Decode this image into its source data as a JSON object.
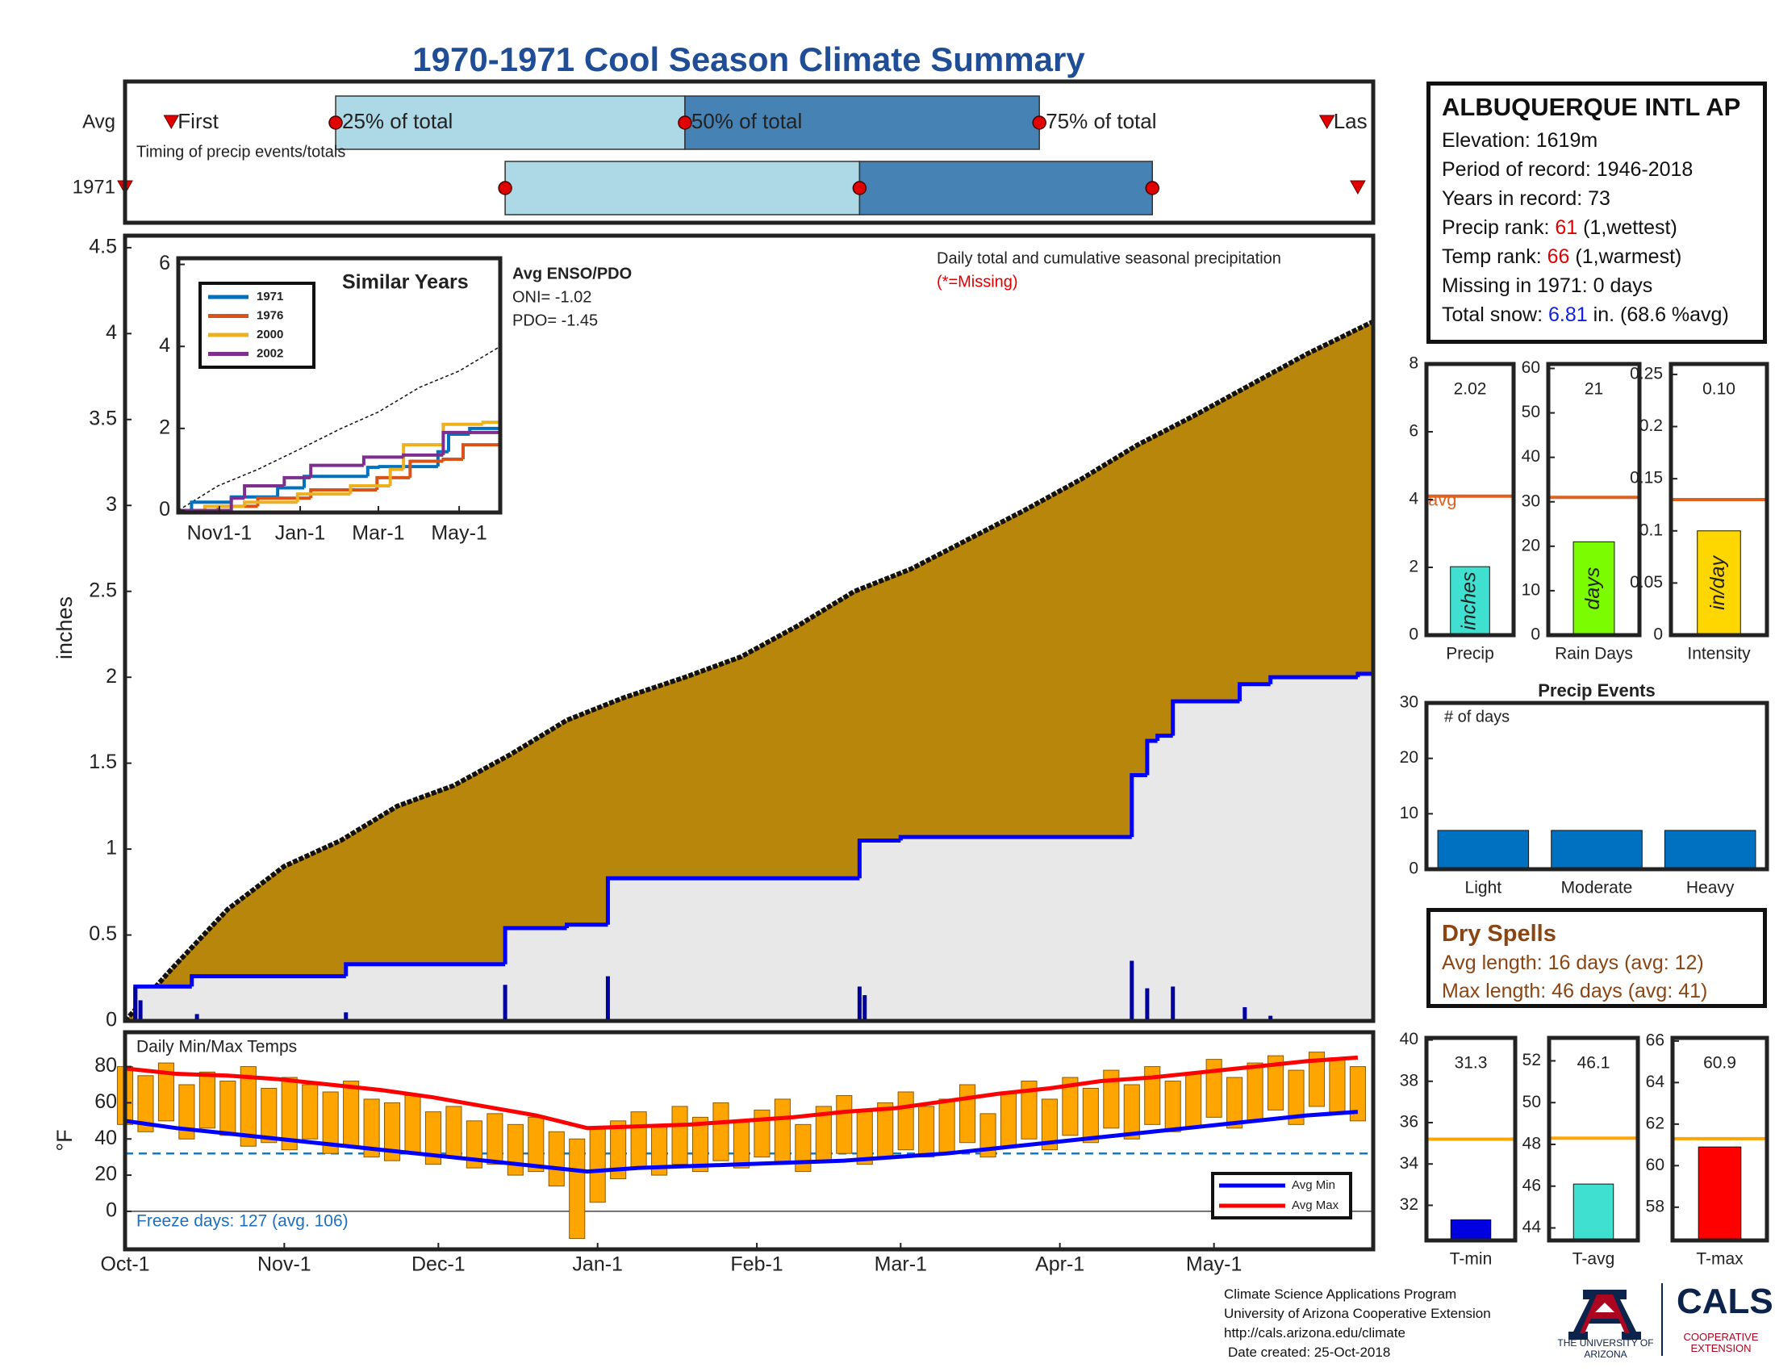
{
  "title": "1970-1971 Cool Season Climate Summary",
  "chart_data": [
    {
      "type": "timing",
      "note": "Timing of precip events/totals",
      "xlim": [
        0,
        243
      ],
      "rows": [
        {
          "name": "Avg",
          "first": 9,
          "q25": 41,
          "q50": 109,
          "q75": 178,
          "last": 234
        },
        {
          "name": "1971",
          "first": 0,
          "q25": 74,
          "q50": 143,
          "q75": 200,
          "last": 240
        }
      ],
      "labels": {
        "first": "First",
        "q25": "25% of total",
        "q50": "50% of total",
        "q75": "75% of total",
        "last": "Las"
      },
      "colors": {
        "lower": "#add8e6",
        "upper": "#4682b4",
        "marker": "#e00000"
      }
    },
    {
      "type": "precip",
      "title": "Daily total and cumulative seasonal precipitation",
      "missing_note": "(*=Missing)",
      "ylabel": "inches",
      "xlim": [
        0,
        243
      ],
      "ylim": [
        0,
        4.57
      ],
      "yticks": [
        0,
        0.5,
        1,
        1.5,
        2,
        2.5,
        3,
        3.5,
        4,
        4.5
      ],
      "background": "#e8e8e8",
      "average": {
        "color": "#b8860b",
        "x": [
          0,
          9,
          20,
          31,
          42,
          53,
          64,
          75,
          86,
          97,
          109,
          120,
          131,
          142,
          153,
          164,
          175,
          186,
          197,
          208,
          219,
          230,
          243
        ],
        "values": [
          0,
          0.3,
          0.65,
          0.9,
          1.05,
          1.25,
          1.37,
          1.55,
          1.75,
          1.88,
          2.0,
          2.12,
          2.3,
          2.5,
          2.63,
          2.8,
          2.97,
          3.15,
          3.35,
          3.52,
          3.7,
          3.88,
          4.07
        ]
      },
      "cumulative": {
        "color": "#0000ff",
        "x": [
          0,
          2,
          13,
          43,
          74,
          86,
          94,
          143,
          151,
          196,
          199,
          201,
          204,
          217,
          223,
          240,
          243
        ],
        "values": [
          0,
          0.2,
          0.26,
          0.33,
          0.54,
          0.56,
          0.83,
          1.05,
          1.07,
          1.43,
          1.63,
          1.66,
          1.86,
          1.96,
          2.0,
          2.02,
          2.02
        ]
      },
      "daily": {
        "color": "#0000a0",
        "x": [
          2,
          3,
          14,
          43,
          74,
          94,
          143,
          144,
          196,
          199,
          204,
          218,
          223
        ],
        "values": [
          0.2,
          0.12,
          0.04,
          0.05,
          0.21,
          0.26,
          0.2,
          0.15,
          0.35,
          0.19,
          0.2,
          0.08,
          0.03
        ]
      }
    },
    {
      "type": "line",
      "title": "Similar Years",
      "annotation": {
        "title": "Avg ENSO/PDO",
        "lines": [
          "ONI= -1.02",
          "PDO= -1.45"
        ]
      },
      "xlim": [
        0,
        243
      ],
      "xticks": [
        {
          "value": 31,
          "label": "Nov1-1"
        },
        {
          "value": 92,
          "label": "Jan-1"
        },
        {
          "value": 151,
          "label": "Mar-1"
        },
        {
          "value": 212,
          "label": "May-1"
        }
      ],
      "ylim": [
        -0.05,
        6.15
      ],
      "yticks": [
        0,
        2,
        4,
        6
      ],
      "reference": {
        "x": [
          0,
          30,
          60,
          92,
          123,
          151,
          182,
          212,
          243
        ],
        "values": [
          0,
          0.6,
          1.0,
          1.5,
          2.0,
          2.4,
          3.0,
          3.4,
          4.0
        ]
      },
      "series": [
        {
          "name": "1971",
          "color": "#0072bd",
          "x": [
            0,
            10,
            40,
            75,
            95,
            143,
            152,
            196,
            204,
            220,
            243
          ],
          "values": [
            0,
            0.2,
            0.33,
            0.55,
            0.83,
            1.05,
            1.07,
            1.43,
            1.86,
            2.0,
            2.02
          ]
        },
        {
          "name": "1976",
          "color": "#d95319",
          "x": [
            0,
            30,
            60,
            100,
            150,
            175,
            200,
            215,
            243
          ],
          "values": [
            0,
            0.1,
            0.3,
            0.5,
            0.8,
            1.2,
            1.25,
            1.6,
            1.9
          ]
        },
        {
          "name": "2000",
          "color": "#edb120",
          "x": [
            0,
            20,
            50,
            90,
            130,
            160,
            170,
            200,
            230,
            243
          ],
          "values": [
            0,
            0.1,
            0.2,
            0.4,
            0.6,
            1.0,
            1.6,
            2.1,
            2.15,
            2.25
          ]
        },
        {
          "name": "2002",
          "color": "#7e2f8e",
          "x": [
            0,
            40,
            50,
            80,
            100,
            140,
            170,
            200,
            243
          ],
          "values": [
            0,
            0.3,
            0.6,
            0.8,
            1.1,
            1.3,
            1.35,
            1.9,
            2.0
          ]
        }
      ]
    },
    {
      "type": "temperature",
      "title": "Daily Min/Max Temps",
      "ylabel": "°F",
      "freeze_note": "Freeze days: 127 (avg. 106)",
      "xlim": [
        0,
        243
      ],
      "xticks": [
        {
          "value": 0,
          "label": "Oct-1"
        },
        {
          "value": 31,
          "label": "Nov-1"
        },
        {
          "value": 61,
          "label": "Dec-1"
        },
        {
          "value": 92,
          "label": "Jan-1"
        },
        {
          "value": 123,
          "label": "Feb-1"
        },
        {
          "value": 151,
          "label": "Mar-1"
        },
        {
          "value": 182,
          "label": "Apr-1"
        },
        {
          "value": 212,
          "label": "May-1"
        }
      ],
      "ylim": [
        -21,
        99
      ],
      "yticks": [
        0,
        20,
        40,
        60,
        80
      ],
      "freeze": 32,
      "bar_color": "#ffa500",
      "x": [
        0,
        4,
        8,
        12,
        16,
        20,
        24,
        28,
        32,
        36,
        40,
        44,
        48,
        52,
        56,
        60,
        64,
        68,
        72,
        76,
        80,
        84,
        88,
        92,
        96,
        100,
        104,
        108,
        112,
        116,
        120,
        124,
        128,
        132,
        136,
        140,
        144,
        148,
        152,
        156,
        160,
        164,
        168,
        172,
        176,
        180,
        184,
        188,
        192,
        196,
        200,
        204,
        208,
        212,
        216,
        220,
        224,
        228,
        232,
        236,
        240
      ],
      "daily_min": [
        48,
        44,
        50,
        40,
        46,
        42,
        36,
        38,
        34,
        40,
        32,
        36,
        30,
        28,
        32,
        26,
        30,
        24,
        26,
        20,
        22,
        14,
        -15,
        5,
        18,
        24,
        20,
        26,
        22,
        28,
        24,
        30,
        26,
        22,
        28,
        32,
        26,
        30,
        34,
        30,
        32,
        38,
        30,
        36,
        40,
        34,
        42,
        38,
        46,
        40,
        48,
        44,
        46,
        52,
        46,
        50,
        56,
        48,
        58,
        54,
        50
      ],
      "daily_max": [
        80,
        75,
        82,
        70,
        77,
        72,
        80,
        68,
        74,
        70,
        66,
        72,
        62,
        60,
        64,
        55,
        58,
        50,
        54,
        48,
        52,
        44,
        40,
        46,
        50,
        55,
        48,
        58,
        52,
        60,
        50,
        56,
        62,
        48,
        58,
        64,
        55,
        60,
        66,
        58,
        62,
        70,
        54,
        66,
        72,
        62,
        74,
        68,
        78,
        70,
        80,
        72,
        76,
        84,
        74,
        82,
        86,
        78,
        88,
        84,
        80
      ],
      "series": [
        {
          "name": "Avg Min",
          "color": "#0000ff",
          "x": [
            0,
            10,
            20,
            30,
            40,
            50,
            60,
            70,
            80,
            90,
            100,
            110,
            120,
            130,
            140,
            150,
            160,
            170,
            180,
            190,
            200,
            210,
            220,
            230,
            240
          ],
          "values": [
            50,
            46,
            43,
            40,
            37,
            34,
            31,
            28,
            25,
            22,
            24,
            25,
            26,
            27,
            28,
            30,
            32,
            35,
            38,
            41,
            44,
            47,
            50,
            53,
            55
          ]
        },
        {
          "name": "Avg Max",
          "color": "#ff0000",
          "x": [
            0,
            10,
            20,
            30,
            40,
            50,
            60,
            70,
            80,
            90,
            100,
            110,
            120,
            130,
            140,
            150,
            160,
            170,
            180,
            190,
            200,
            210,
            220,
            230,
            240
          ],
          "values": [
            79,
            76,
            75,
            73,
            70,
            67,
            63,
            58,
            53,
            46,
            47,
            48,
            50,
            52,
            55,
            57,
            61,
            65,
            68,
            72,
            74,
            77,
            80,
            83,
            85
          ]
        }
      ]
    },
    {
      "type": "bar",
      "categories": [
        "Precip"
      ],
      "values": [
        2.02
      ],
      "data_labels": true,
      "color": "#40e0d0",
      "unit": "inches",
      "avg": 4.1,
      "avg_label": "avg",
      "avg_color": "#e06020",
      "ylim": [
        0,
        8
      ],
      "yticks": [
        0,
        2,
        4,
        6,
        8
      ]
    },
    {
      "type": "bar",
      "categories": [
        "Rain Days"
      ],
      "values": [
        21
      ],
      "data_labels": true,
      "color": "#7cfc00",
      "unit": "days",
      "avg": 31,
      "avg_color": "#e06020",
      "ylim": [
        0,
        61
      ],
      "yticks": [
        0,
        10,
        20,
        30,
        40,
        50,
        60
      ]
    },
    {
      "type": "bar",
      "categories": [
        "Intensity"
      ],
      "values": [
        0.1
      ],
      "value_labels": [
        "0.10"
      ],
      "data_labels": true,
      "color": "#ffd700",
      "unit": "in/day",
      "avg": 0.13,
      "avg_color": "#e06020",
      "ylim": [
        0,
        0.26
      ],
      "yticks": [
        0,
        0.05,
        0.1,
        0.15,
        0.2,
        0.25
      ]
    },
    {
      "type": "bar",
      "title": "Precip Events",
      "note": "# of days",
      "categories": [
        "Light",
        "Moderate",
        "Heavy"
      ],
      "values": [
        7,
        7,
        7
      ],
      "color": "#0070c0",
      "ylim": [
        0,
        30
      ],
      "yticks": [
        0,
        10,
        20,
        30
      ]
    },
    {
      "type": "bar",
      "categories": [
        "T-min"
      ],
      "values": [
        31.3
      ],
      "data_labels": true,
      "color": "#0000e0",
      "avg": 35.2,
      "avg_color": "#ffa500",
      "ylim": [
        30.3,
        40.1
      ],
      "yticks": [
        32,
        34,
        36,
        38,
        40
      ]
    },
    {
      "type": "bar",
      "categories": [
        "T-avg"
      ],
      "values": [
        46.1
      ],
      "data_labels": true,
      "color": "#40e0d0",
      "avg": 48.3,
      "avg_color": "#ffa500",
      "ylim": [
        43.4,
        53.1
      ],
      "yticks": [
        44,
        46,
        48,
        50,
        52
      ]
    },
    {
      "type": "bar",
      "categories": [
        "T-max"
      ],
      "values": [
        60.9
      ],
      "data_labels": true,
      "color": "#ff0000",
      "avg": 61.3,
      "avg_color": "#ffa500",
      "ylim": [
        56.4,
        66.15
      ],
      "yticks": [
        58,
        60,
        62,
        64,
        66
      ]
    }
  ],
  "station": {
    "name": "ALBUQUERQUE INTL AP",
    "lines": [
      "Elevation: 1619m",
      "Period of record: 1946-2018",
      "Years in record: 73"
    ],
    "precip_rank": {
      "label": "Precip rank:",
      "value": 61,
      "note": "(1,wettest)"
    },
    "temp_rank": {
      "label": "Temp rank:",
      "value": 66,
      "note": "(1,warmest)"
    },
    "missing": "Missing in 1971: 0 days",
    "snow": {
      "label": "Total snow:",
      "value": 6.81,
      "note": "in. (68.6 %avg)"
    }
  },
  "dry_spells": {
    "title": "Dry Spells",
    "lines": [
      "Avg length: 16 days (avg: 12)",
      "Max length: 46 days (avg: 41)"
    ]
  },
  "footer": {
    "lines": [
      "Climate Science Applications Program",
      "University of Arizona Cooperative Extension",
      "http://cals.arizona.edu/climate",
      "Date created: 25-Oct-2018"
    ],
    "university": "THE UNIVERSITY OF ARIZONA",
    "cals": "CALS",
    "extension": "COOPERATIVE EXTENSION"
  }
}
